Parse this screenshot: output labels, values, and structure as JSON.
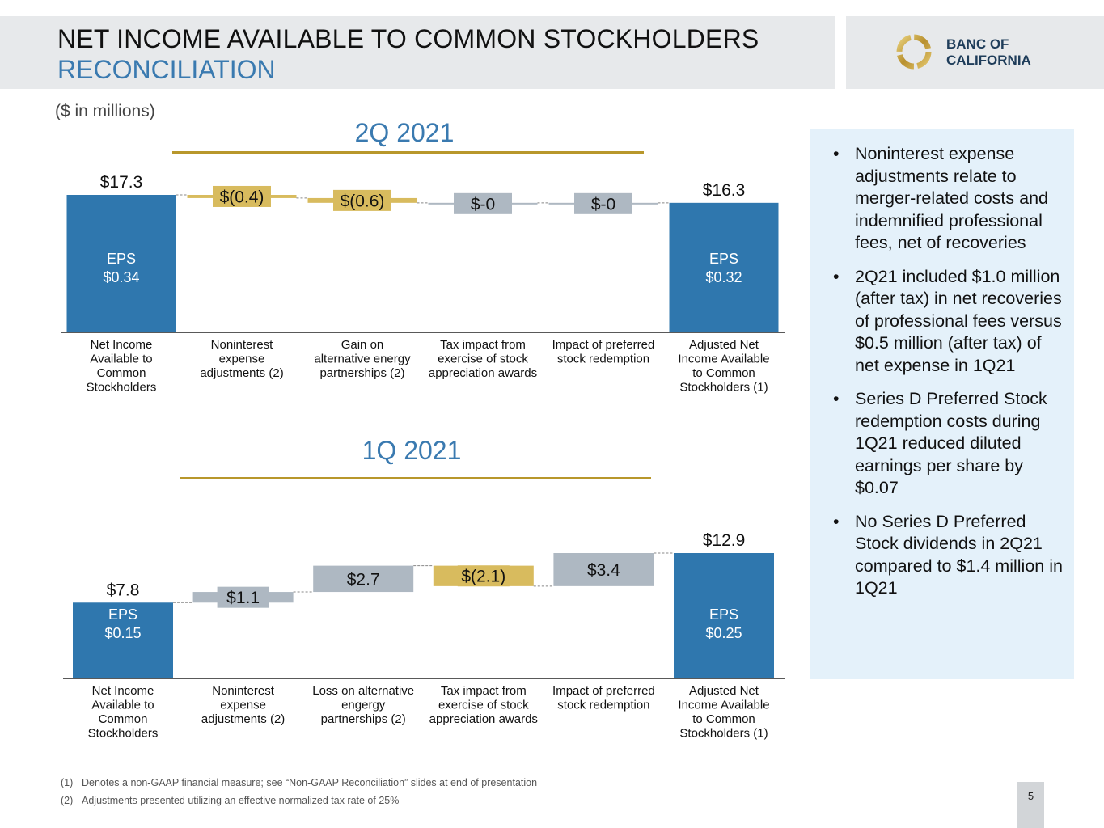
{
  "header": {
    "title_line1": "NET INCOME AVAILABLE TO COMMON STOCKHOLDERS",
    "title_line2": "RECONCILIATION",
    "logo_line1": "BANC OF",
    "logo_line2": "CALIFORNIA"
  },
  "units_label": "($ in millions)",
  "colors": {
    "blue": "#2f77ae",
    "gold": "#d8bb5e",
    "gray": "#aeb8c2",
    "title_blue": "#3a7ab0",
    "rule_gold": "#b8972b"
  },
  "chart_data": [
    {
      "type": "bar",
      "subtype": "waterfall",
      "title": "2Q 2021",
      "categories": [
        "Net Income Available to Common Stockholders",
        "Noninterest expense adjustments (2)",
        "Gain on alternative energy partnerships (2)",
        "Tax impact from exercise of stock appreciation awards",
        "Impact of preferred stock redemption",
        "Adjusted Net Income Available to Common Stockholders (1)"
      ],
      "category_lines": [
        [
          "Net Income",
          "Available to",
          "Common",
          "Stockholders"
        ],
        [
          "Noninterest",
          "expense",
          "adjustments (2)"
        ],
        [
          "Gain on",
          "alternative energy",
          "partnerships (2)"
        ],
        [
          "Tax impact from",
          "exercise of stock",
          "appreciation awards"
        ],
        [
          "Impact of preferred",
          "stock redemption"
        ],
        [
          "Adjusted Net",
          "Income Available",
          "to Common",
          "Stockholders (1)"
        ]
      ],
      "values": [
        17.3,
        -0.4,
        -0.6,
        0,
        0,
        16.3
      ],
      "kinds": [
        "total",
        "negative",
        "negative",
        "zero",
        "zero",
        "total"
      ],
      "labels": [
        "$17.3",
        "$(0.4)",
        "$(0.6)",
        "$-0",
        "$-0",
        "$16.3"
      ],
      "eps": [
        {
          "index": 0,
          "label": "EPS",
          "value": "$0.34"
        },
        {
          "index": 5,
          "label": "EPS",
          "value": "$0.32"
        }
      ]
    },
    {
      "type": "bar",
      "subtype": "waterfall",
      "title": "1Q 2021",
      "categories": [
        "Net Income Available to Common Stockholders",
        "Noninterest expense adjustments (2)",
        "Loss on alternative engergy partnerships (2)",
        "Tax impact from exercise of stock appreciation awards",
        "Impact of preferred stock redemption",
        "Adjusted Net Income Available to Common Stockholders (1)"
      ],
      "category_lines": [
        [
          "Net Income",
          "Available to",
          "Common",
          "Stockholders"
        ],
        [
          "Noninterest",
          "expense",
          "adjustments (2)"
        ],
        [
          "Loss on alternative",
          "engergy",
          "partnerships (2)"
        ],
        [
          "Tax impact from",
          "exercise of stock",
          "appreciation awards"
        ],
        [
          "Impact of preferred",
          "stock redemption"
        ],
        [
          "Adjusted Net",
          "Income Available",
          "to Common",
          "Stockholders (1)"
        ]
      ],
      "values": [
        7.8,
        1.1,
        2.7,
        -2.1,
        3.4,
        12.9
      ],
      "kinds": [
        "total",
        "positive",
        "positive",
        "negative",
        "positive",
        "total"
      ],
      "labels": [
        "$7.8",
        "$1.1",
        "$2.7",
        "$(2.1)",
        "$3.4",
        "$12.9"
      ],
      "eps": [
        {
          "index": 0,
          "label": "EPS",
          "value": "$0.15"
        },
        {
          "index": 5,
          "label": "EPS",
          "value": "$0.25"
        }
      ]
    }
  ],
  "bullets": [
    "Noninterest expense adjustments relate to merger-related costs and indemnified professional fees, net of recoveries",
    "2Q21 included $1.0 million (after tax) in net recoveries of professional fees versus $0.5 million (after tax) of net expense in 1Q21",
    "Series D Preferred Stock redemption costs during 1Q21 reduced diluted earnings per share by $0.07",
    "No Series D Preferred Stock dividends in 2Q21 compared to $1.4 million in 1Q21"
  ],
  "footnotes": [
    {
      "num": "(1)",
      "text": "Denotes a non-GAAP financial measure; see “Non-GAAP Reconciliation” slides at end of presentation"
    },
    {
      "num": "(2)",
      "text": "Adjustments presented utilizing an effective normalized tax rate of 25%"
    }
  ],
  "page_number": "5"
}
